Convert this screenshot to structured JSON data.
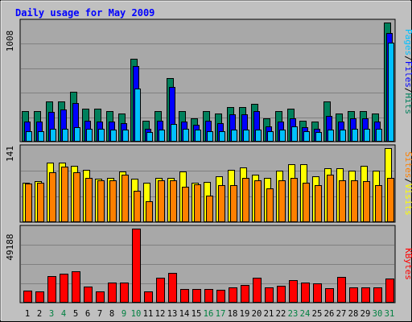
{
  "title": "Daily usage for May 2009",
  "colors": {
    "background": "#c0c0c0",
    "panel": "#a8a8a8",
    "grid": "#808080",
    "hits": "#00805c",
    "files": "#0000ff",
    "pages": "#00c0ff",
    "visits": "#ffff00",
    "sites": "#ff8000",
    "kbytes": "#ff0000",
    "weekday_label": "#000000",
    "weekend_label": "#008040",
    "title": "#0000ff"
  },
  "chart_data": [
    {
      "type": "bar",
      "panel": "hits-files-pages",
      "y_max_label": "1008",
      "ylim": [
        0,
        1008
      ],
      "legend": [
        {
          "key": "pages",
          "text": "Pages"
        },
        {
          "key": "sep1",
          "text": "/"
        },
        {
          "key": "files",
          "text": "Files"
        },
        {
          "key": "sep2",
          "text": "/"
        },
        {
          "key": "hits",
          "text": "Hits"
        }
      ],
      "categories": [
        "1",
        "2",
        "3",
        "4",
        "5",
        "6",
        "7",
        "8",
        "9",
        "10",
        "11",
        "12",
        "13",
        "14",
        "15",
        "16",
        "17",
        "18",
        "19",
        "20",
        "21",
        "22",
        "23",
        "24",
        "25",
        "26",
        "27",
        "28",
        "29",
        "30",
        "31"
      ],
      "series": [
        {
          "name": "Hits",
          "color_key": "hits",
          "values": [
            260,
            260,
            340,
            340,
            420,
            280,
            280,
            260,
            240,
            700,
            180,
            260,
            540,
            260,
            200,
            260,
            240,
            290,
            290,
            320,
            200,
            260,
            280,
            180,
            170,
            340,
            240,
            260,
            260,
            240,
            1008
          ]
        },
        {
          "name": "Files",
          "color_key": "files",
          "values": [
            170,
            170,
            250,
            270,
            330,
            180,
            170,
            170,
            160,
            640,
            110,
            180,
            460,
            170,
            140,
            180,
            160,
            230,
            230,
            260,
            130,
            170,
            200,
            120,
            110,
            220,
            170,
            200,
            200,
            170,
            920
          ]
        },
        {
          "name": "Pages",
          "color_key": "pages",
          "values": [
            90,
            90,
            110,
            110,
            120,
            110,
            110,
            100,
            100,
            450,
            80,
            100,
            150,
            110,
            100,
            90,
            90,
            100,
            100,
            100,
            90,
            100,
            130,
            90,
            80,
            100,
            100,
            110,
            110,
            110,
            840
          ]
        }
      ]
    },
    {
      "type": "bar",
      "panel": "sites-visits",
      "y_max_label": "141",
      "ylim": [
        0,
        141
      ],
      "legend": [
        {
          "key": "sites",
          "text": "Sites"
        },
        {
          "key": "sep1",
          "text": "/"
        },
        {
          "key": "visits",
          "text": "Visits"
        }
      ],
      "categories": [
        "1",
        "2",
        "3",
        "4",
        "5",
        "6",
        "7",
        "8",
        "9",
        "10",
        "11",
        "12",
        "13",
        "14",
        "15",
        "16",
        "17",
        "18",
        "19",
        "20",
        "21",
        "22",
        "23",
        "24",
        "25",
        "26",
        "27",
        "28",
        "29",
        "30",
        "31"
      ],
      "series": [
        {
          "name": "Visits",
          "color_key": "visits",
          "values": [
            75,
            78,
            114,
            113,
            108,
            100,
            83,
            85,
            96,
            82,
            75,
            85,
            85,
            96,
            75,
            77,
            88,
            99,
            104,
            90,
            85,
            98,
            111,
            111,
            88,
            103,
            103,
            98,
            108,
            98,
            141
          ]
        },
        {
          "name": "Sites",
          "color_key": "sites",
          "values": [
            73,
            75,
            95,
            105,
            95,
            85,
            80,
            80,
            90,
            60,
            40,
            80,
            79,
            68,
            72,
            50,
            70,
            70,
            85,
            80,
            65,
            80,
            85,
            75,
            70,
            90,
            80,
            80,
            78,
            70,
            85
          ]
        }
      ]
    },
    {
      "type": "bar",
      "panel": "kbytes",
      "y_max_label": "49188",
      "ylim": [
        0,
        49188
      ],
      "legend": [
        {
          "key": "kbytes",
          "text": "KBytes"
        }
      ],
      "categories": [
        "1",
        "2",
        "3",
        "4",
        "5",
        "6",
        "7",
        "8",
        "9",
        "10",
        "11",
        "12",
        "13",
        "14",
        "15",
        "16",
        "17",
        "18",
        "19",
        "20",
        "21",
        "22",
        "23",
        "24",
        "25",
        "26",
        "27",
        "28",
        "29",
        "30",
        "31"
      ],
      "series": [
        {
          "name": "KBytes",
          "color_key": "kbytes",
          "values": [
            8100,
            7300,
            17500,
            19000,
            21000,
            10900,
            7300,
            13500,
            13200,
            49188,
            7400,
            16500,
            19700,
            9200,
            9000,
            9300,
            8800,
            10300,
            11600,
            16500,
            10300,
            11000,
            15200,
            13400,
            12700,
            9700,
            17300,
            9900,
            10300,
            10200,
            16200
          ]
        }
      ]
    }
  ],
  "x_axis": {
    "labels": [
      "1",
      "2",
      "3",
      "4",
      "5",
      "6",
      "7",
      "8",
      "9",
      "10",
      "11",
      "12",
      "13",
      "14",
      "15",
      "16",
      "17",
      "18",
      "19",
      "20",
      "21",
      "22",
      "23",
      "24",
      "25",
      "26",
      "27",
      "28",
      "29",
      "30",
      "31"
    ],
    "weekend": [
      false,
      false,
      true,
      true,
      false,
      false,
      false,
      false,
      true,
      true,
      false,
      false,
      false,
      false,
      false,
      true,
      true,
      false,
      false,
      false,
      false,
      false,
      true,
      true,
      false,
      false,
      false,
      false,
      false,
      true,
      true
    ]
  }
}
